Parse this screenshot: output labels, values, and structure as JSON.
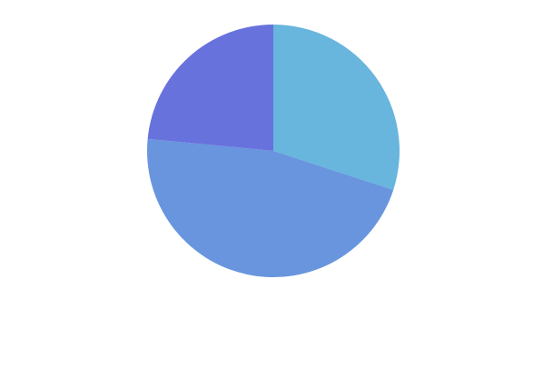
{
  "chart_data": {
    "type": "pie",
    "title": "",
    "start_angle_deg": 0,
    "direction": "clockwise",
    "legend": "none",
    "slices": [
      {
        "value": 30.0,
        "color": "#68b5dd"
      },
      {
        "value": 46.5,
        "color": "#6895de"
      },
      {
        "value": 23.5,
        "color": "#6872dd"
      }
    ]
  }
}
